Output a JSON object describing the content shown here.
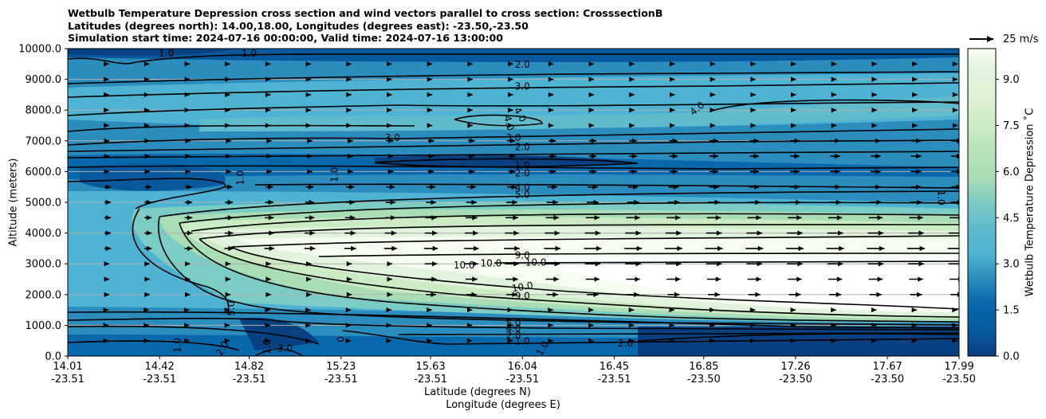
{
  "title": {
    "line1": "Wetbulb Temperature Depression cross section and wind vectors parallel to cross section: CrosssectionB",
    "line2": "Latitudes (degrees north): 14.00,18.00, Longitudes (degrees east): -23.50,-23.50",
    "line3": "Simulation start time: 2024-07-16 00:00:00, Valid time: 2024-07-16 13:00:00"
  },
  "chart_data": {
    "type": "heatmap",
    "description_variable": "Wetbulb Temperature Depression",
    "xlabel_lat": "Latitude (degrees N)",
    "xlabel_lon": "Longitude (degrees E)",
    "ylabel": "Altitude (meters)",
    "colorbar_label": "Wetbulb Temperature Depression ˚C",
    "xlim": [
      14.01,
      17.99
    ],
    "ylim": [
      0,
      10000
    ],
    "x_ticks": [
      {
        "lat": "14.01",
        "lon": "-23.51",
        "v": 14.01
      },
      {
        "lat": "14.42",
        "lon": "-23.51",
        "v": 14.42
      },
      {
        "lat": "14.82",
        "lon": "-23.51",
        "v": 14.82
      },
      {
        "lat": "15.23",
        "lon": "-23.51",
        "v": 15.23
      },
      {
        "lat": "15.63",
        "lon": "-23.51",
        "v": 15.63
      },
      {
        "lat": "16.04",
        "lon": "-23.51",
        "v": 16.04
      },
      {
        "lat": "16.45",
        "lon": "-23.51",
        "v": 16.45
      },
      {
        "lat": "16.85",
        "lon": "-23.50",
        "v": 16.85
      },
      {
        "lat": "17.26",
        "lon": "-23.50",
        "v": 17.26
      },
      {
        "lat": "17.67",
        "lon": "-23.50",
        "v": 17.67
      },
      {
        "lat": "17.99",
        "lon": "-23.50",
        "v": 17.99
      }
    ],
    "y_ticks": [
      "0.0",
      "1000.0",
      "2000.0",
      "3000.0",
      "4000.0",
      "5000.0",
      "6000.0",
      "7000.0",
      "8000.0",
      "9000.0",
      "10000.0"
    ],
    "colorbar_ticks": [
      "0.0",
      "1.5",
      "3.0",
      "4.5",
      "6.0",
      "7.5",
      "9.0"
    ],
    "colorbar_range": [
      0,
      10
    ],
    "wind_key": "25 m/s",
    "contour_labels": [
      {
        "text": "1.0",
        "lat": 14.45,
        "alt": 9850,
        "angle": 0
      },
      {
        "text": "1.0",
        "lat": 14.82,
        "alt": 9850,
        "angle": 0
      },
      {
        "text": "2.0",
        "lat": 16.04,
        "alt": 9480,
        "angle": 0
      },
      {
        "text": "3.0",
        "lat": 16.04,
        "alt": 8770,
        "angle": 0
      },
      {
        "text": "4.0",
        "lat": 16.03,
        "alt": 7850,
        "angle": 60
      },
      {
        "text": "4.0",
        "lat": 15.98,
        "alt": 7580,
        "angle": 75
      },
      {
        "text": "4.0",
        "lat": 16.82,
        "alt": 8050,
        "angle": -40
      },
      {
        "text": "3.0",
        "lat": 15.46,
        "alt": 7100,
        "angle": 0
      },
      {
        "text": "3.0",
        "lat": 16.0,
        "alt": 7100,
        "angle": 0
      },
      {
        "text": "2.0",
        "lat": 16.04,
        "alt": 6800,
        "angle": 0
      },
      {
        "text": "1.0",
        "lat": 16.04,
        "alt": 6200,
        "angle": 0
      },
      {
        "text": "2.0",
        "lat": 16.04,
        "alt": 5950,
        "angle": 0
      },
      {
        "text": "1.0",
        "lat": 15.2,
        "alt": 5900,
        "angle": -90
      },
      {
        "text": "1.0",
        "lat": 14.78,
        "alt": 5800,
        "angle": -90
      },
      {
        "text": "4.0",
        "lat": 16.04,
        "alt": 5480,
        "angle": 0
      },
      {
        "text": "5.0",
        "lat": 16.04,
        "alt": 5250,
        "angle": 0
      },
      {
        "text": "1.0",
        "lat": 17.91,
        "alt": 5150,
        "angle": 90
      },
      {
        "text": "9.0",
        "lat": 16.04,
        "alt": 3280,
        "angle": 0
      },
      {
        "text": "10.0",
        "lat": 15.78,
        "alt": 2950,
        "angle": 0
      },
      {
        "text": "10.0",
        "lat": 15.9,
        "alt": 3020,
        "angle": 0
      },
      {
        "text": "10.0",
        "lat": 16.1,
        "alt": 3050,
        "angle": 0
      },
      {
        "text": "10.0",
        "lat": 16.04,
        "alt": 2250,
        "angle": -10
      },
      {
        "text": "9.0",
        "lat": 16.04,
        "alt": 1950,
        "angle": 0
      },
      {
        "text": "5.0",
        "lat": 14.74,
        "alt": 1550,
        "angle": -90
      },
      {
        "text": "5.0",
        "lat": 16.0,
        "alt": 1070,
        "angle": 0
      },
      {
        "text": "4.0",
        "lat": 16.0,
        "alt": 900,
        "angle": 0
      },
      {
        "text": "2.0",
        "lat": 16.0,
        "alt": 670,
        "angle": 0
      },
      {
        "text": "1.0",
        "lat": 16.04,
        "alt": 480,
        "angle": 0
      },
      {
        "text": "0",
        "lat": 15.23,
        "alt": 550,
        "angle": -90
      },
      {
        "text": "1.0",
        "lat": 14.5,
        "alt": 350,
        "angle": -90
      },
      {
        "text": "2.0",
        "lat": 14.7,
        "alt": 250,
        "angle": -60
      },
      {
        "text": "1.0",
        "lat": 14.9,
        "alt": 300,
        "angle": -90
      },
      {
        "text": "3.0",
        "lat": 14.98,
        "alt": 250,
        "angle": 0
      },
      {
        "text": "1.0",
        "lat": 16.13,
        "alt": 250,
        "angle": -60
      },
      {
        "text": "2.0",
        "lat": 16.5,
        "alt": 420,
        "angle": 0
      }
    ]
  }
}
